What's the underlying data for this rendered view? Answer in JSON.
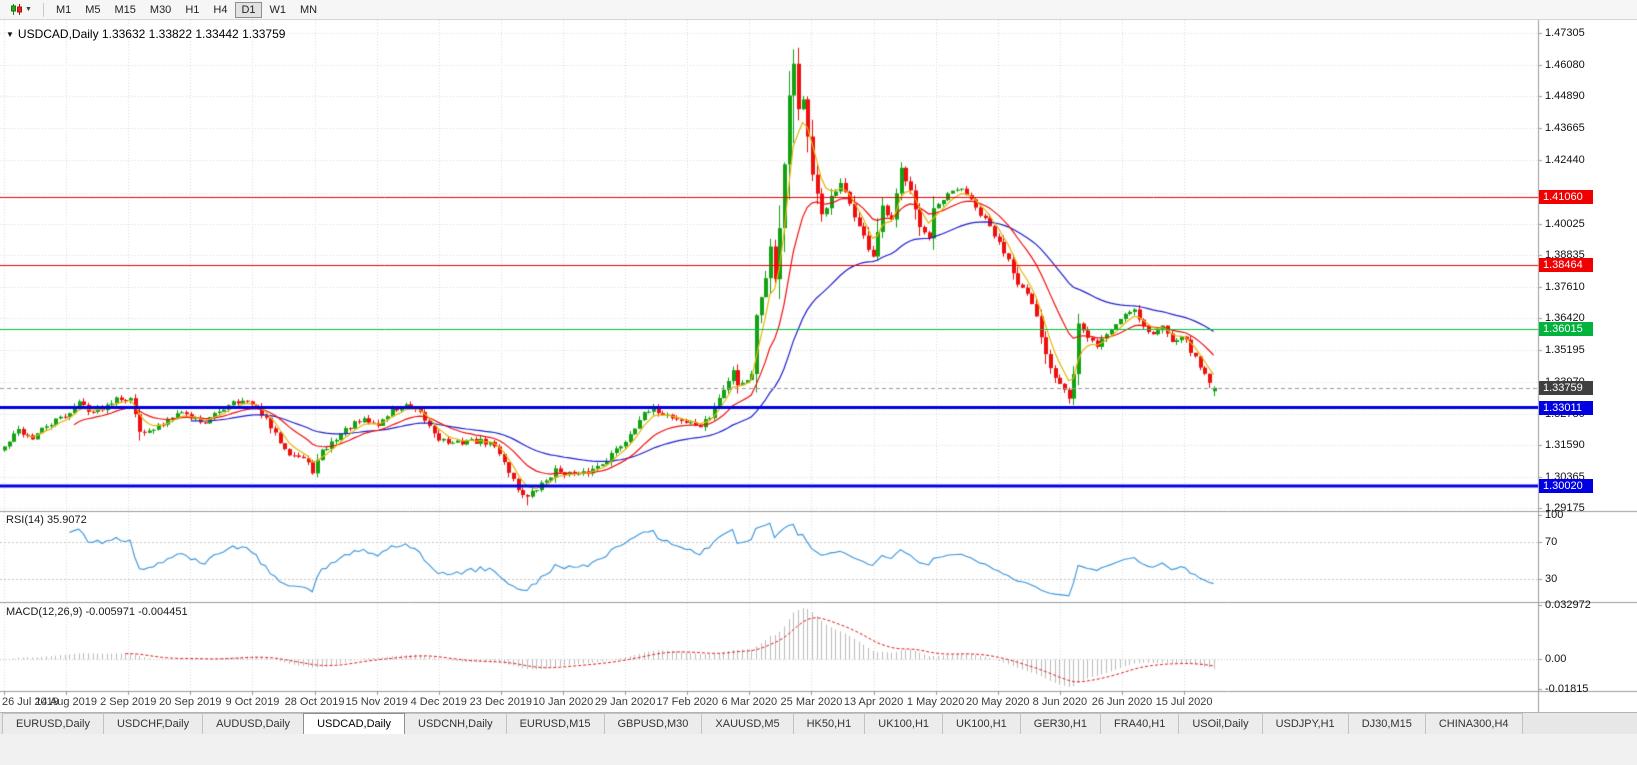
{
  "toolbar": {
    "timeframes": [
      "M1",
      "M5",
      "M15",
      "M30",
      "H1",
      "H4",
      "D1",
      "W1",
      "MN"
    ],
    "active_timeframe": "D1",
    "dropdown_glyph": "▼"
  },
  "chart": {
    "marker": "▼",
    "symbol_period": "USDCAD,Daily",
    "title_line": "USDCAD,Daily 1.33632 1.33822 1.33442 1.33759"
  },
  "indicators": {
    "rsi": {
      "name": "RSI(14)",
      "value": "35.9072",
      "axis_ticks": [
        "100",
        "70",
        "30"
      ]
    },
    "macd": {
      "name": "MACD(12,26,9)",
      "value_main": "-0.005971",
      "value_signal": "-0.004451",
      "axis_ticks": [
        "0.032972",
        "0.00",
        "-0.01815"
      ]
    }
  },
  "price_axis": {
    "ticks": [
      "1.47305",
      "1.46080",
      "1.44890",
      "1.43665",
      "1.42440",
      "1.40025",
      "1.38835",
      "1.37610",
      "1.36420",
      "1.35195",
      "1.33970",
      "1.32780",
      "1.31590",
      "1.30365",
      "1.29175"
    ],
    "grid_extra": [
      1.41215
    ],
    "markers": [
      {
        "label": "1.41060",
        "value": 1.4106,
        "bg": "#f00000",
        "line_color": "#f00000",
        "line_width": 1,
        "line_style": "solid"
      },
      {
        "label": "1.38464",
        "value": 1.38464,
        "bg": "#f00000",
        "line_color": "#f00000",
        "line_width": 1,
        "line_style": "solid"
      },
      {
        "label": "1.36015",
        "value": 1.36015,
        "bg": "#00b33c",
        "line_color": "#00c23c",
        "line_width": 1,
        "line_style": "solid"
      },
      {
        "label": "1.33759",
        "value": 1.33759,
        "bg": "#3f3f3f",
        "line_color": "#9a9a9a",
        "line_width": 1,
        "line_style": "dash"
      },
      {
        "label": "1.33011",
        "value": 1.33011,
        "bg": "#0000e0",
        "line_color": "#0000e0",
        "line_width": 3,
        "line_style": "solid"
      },
      {
        "label": "1.30020",
        "value": 1.3002,
        "bg": "#0000e0",
        "line_color": "#0000e0",
        "line_width": 3,
        "line_style": "solid"
      }
    ]
  },
  "date_axis": {
    "labels": [
      "26 Jul 2019",
      "14 Aug 2019",
      "2 Sep 2019",
      "20 Sep 2019",
      "9 Oct 2019",
      "28 Oct 2019",
      "15 Nov 2019",
      "4 Dec 2019",
      "23 Dec 2019",
      "10 Jan 2020",
      "29 Jan 2020",
      "17 Feb 2020",
      "6 Mar 2020",
      "25 Mar 2020",
      "13 Apr 2020",
      "1 May 2020",
      "20 May 2020",
      "8 Jun 2020",
      "26 Jun 2020",
      "15 Jul 2020"
    ],
    "candles_per_label": 13.3
  },
  "tabs": {
    "items": [
      "EURUSD,Daily",
      "USDCHF,Daily",
      "AUDUSD,Daily",
      "USDCAD,Daily",
      "USDCNH,Daily",
      "EURUSD,M15",
      "GBPUSD,M30",
      "XAUUSD,M5",
      "HK50,H1",
      "UK100,H1",
      "UK100,H1",
      "GER30,H1",
      "FRA40,H1",
      "USOil,Daily",
      "USDJPY,H1",
      "DJ30,M15",
      "CHINA300,H4"
    ],
    "active_index": 3
  },
  "chart_data": {
    "type": "candlestick",
    "symbol": "USDCAD",
    "timeframe": "Daily",
    "last_ohlc": {
      "open": 1.33632,
      "high": 1.33822,
      "low": 1.33442,
      "close": 1.33759
    },
    "n_candles": 260,
    "seed": 42,
    "noise": 0.0012,
    "min_range": 0.0022,
    "price_range": {
      "max": 1.478,
      "min": 1.291
    },
    "up_color": "#14a214",
    "down_color": "#ee0f0f",
    "close_anchors": [
      [
        0,
        1.315
      ],
      [
        3,
        1.3215
      ],
      [
        6,
        1.3185
      ],
      [
        9,
        1.323
      ],
      [
        13,
        1.327
      ],
      [
        16,
        1.332
      ],
      [
        19,
        1.3285
      ],
      [
        22,
        1.331
      ],
      [
        24,
        1.3345
      ],
      [
        27,
        1.333
      ],
      [
        29,
        1.322
      ],
      [
        31,
        1.3205
      ],
      [
        34,
        1.324
      ],
      [
        37,
        1.329
      ],
      [
        40,
        1.3265
      ],
      [
        43,
        1.3245
      ],
      [
        46,
        1.3285
      ],
      [
        49,
        1.333
      ],
      [
        52,
        1.332
      ],
      [
        55,
        1.328
      ],
      [
        58,
        1.3195
      ],
      [
        61,
        1.313
      ],
      [
        64,
        1.3105
      ],
      [
        66,
        1.306
      ],
      [
        68,
        1.313
      ],
      [
        71,
        1.3185
      ],
      [
        74,
        1.323
      ],
      [
        77,
        1.325
      ],
      [
        80,
        1.3235
      ],
      [
        83,
        1.329
      ],
      [
        86,
        1.3305
      ],
      [
        89,
        1.3275
      ],
      [
        91,
        1.323
      ],
      [
        93,
        1.3185
      ],
      [
        96,
        1.316
      ],
      [
        99,
        1.3175
      ],
      [
        102,
        1.317
      ],
      [
        104,
        1.3165
      ],
      [
        106,
        1.313
      ],
      [
        108,
        1.306
      ],
      [
        110,
        1.299
      ],
      [
        112,
        1.2958
      ],
      [
        114,
        1.299
      ],
      [
        116,
        1.3025
      ],
      [
        118,
        1.306
      ],
      [
        120,
        1.3055
      ],
      [
        123,
        1.304
      ],
      [
        126,
        1.3065
      ],
      [
        129,
        1.3105
      ],
      [
        131,
        1.314
      ],
      [
        133,
        1.3175
      ],
      [
        136,
        1.326
      ],
      [
        139,
        1.3295
      ],
      [
        141,
        1.328
      ],
      [
        143,
        1.3265
      ],
      [
        146,
        1.3245
      ],
      [
        149,
        1.323
      ],
      [
        151,
        1.3265
      ],
      [
        153,
        1.3335
      ],
      [
        155,
        1.34
      ],
      [
        156,
        1.345
      ],
      [
        157,
        1.339
      ],
      [
        159,
        1.341
      ],
      [
        160,
        1.3425
      ],
      [
        161,
        1.366
      ],
      [
        162,
        1.373
      ],
      [
        163,
        1.379
      ],
      [
        164,
        1.392
      ],
      [
        165,
        1.38
      ],
      [
        166,
        1.399
      ],
      [
        167,
        1.424
      ],
      [
        168,
        1.449
      ],
      [
        169,
        1.462
      ],
      [
        170,
        1.444
      ],
      [
        171,
        1.448
      ],
      [
        172,
        1.433
      ],
      [
        173,
        1.418
      ],
      [
        175,
        1.404
      ],
      [
        177,
        1.41
      ],
      [
        179,
        1.415
      ],
      [
        181,
        1.408
      ],
      [
        183,
        1.399
      ],
      [
        185,
        1.391
      ],
      [
        186,
        1.388
      ],
      [
        188,
        1.406
      ],
      [
        190,
        1.401
      ],
      [
        192,
        1.421
      ],
      [
        194,
        1.414
      ],
      [
        196,
        1.399
      ],
      [
        198,
        1.394
      ],
      [
        199,
        1.405
      ],
      [
        202,
        1.411
      ],
      [
        205,
        1.414
      ],
      [
        208,
        1.406
      ],
      [
        211,
        1.399
      ],
      [
        213,
        1.3925
      ],
      [
        215,
        1.387
      ],
      [
        217,
        1.378
      ],
      [
        219,
        1.373
      ],
      [
        221,
        1.364
      ],
      [
        223,
        1.35
      ],
      [
        225,
        1.342
      ],
      [
        227,
        1.338
      ],
      [
        228,
        1.334
      ],
      [
        229,
        1.343
      ],
      [
        230,
        1.362
      ],
      [
        232,
        1.356
      ],
      [
        234,
        1.354
      ],
      [
        236,
        1.358
      ],
      [
        238,
        1.362
      ],
      [
        240,
        1.366
      ],
      [
        242,
        1.368
      ],
      [
        244,
        1.361
      ],
      [
        246,
        1.358
      ],
      [
        248,
        1.361
      ],
      [
        250,
        1.356
      ],
      [
        252,
        1.358
      ],
      [
        254,
        1.352
      ],
      [
        256,
        1.3455
      ],
      [
        258,
        1.3405
      ],
      [
        259,
        1.3376
      ]
    ],
    "candle_overrides": {
      "112": {
        "l": 1.2928
      },
      "169": {
        "h": 1.4668,
        "l": 1.431
      },
      "228": {
        "l": 1.3316
      },
      "259": {
        "o": 1.33632,
        "h": 1.33822,
        "l": 1.33442,
        "c": 1.33759
      }
    },
    "moving_averages": [
      {
        "period": 40,
        "color": "#2020cc"
      },
      {
        "period": 15,
        "color": "#f01010"
      },
      {
        "period": 5,
        "color": "#e3b70a"
      }
    ],
    "rsi": {
      "period": 14,
      "color": "#3a96dd",
      "levels": [
        70,
        30
      ],
      "range": {
        "max": 103,
        "min": 6.5
      }
    },
    "macd": {
      "fast": 12,
      "slow": 26,
      "signal": 9,
      "hist_color": "#bbbbbb",
      "signal_color": "#e02020",
      "range": {
        "max": 0.0345,
        "min": -0.0195
      }
    }
  }
}
